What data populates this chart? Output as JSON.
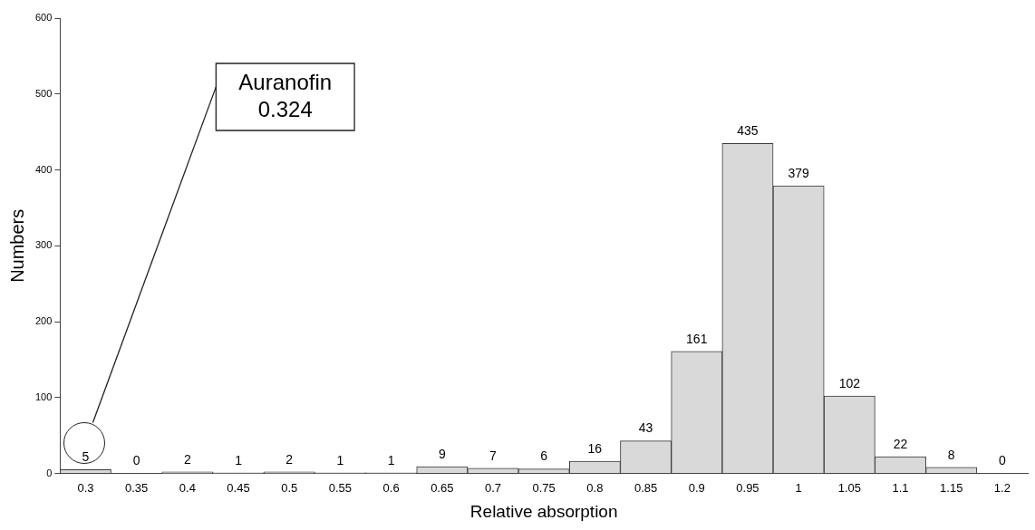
{
  "chart_data": {
    "type": "bar",
    "xlabel": "Relative absorption",
    "ylabel": "Numbers",
    "categories": [
      "0.3",
      "0.35",
      "0.4",
      "0.45",
      "0.5",
      "0.55",
      "0.6",
      "0.65",
      "0.7",
      "0.75",
      "0.8",
      "0.85",
      "0.9",
      "0.95",
      "1",
      "1.05",
      "1.1",
      "1.15",
      "1.2"
    ],
    "values": [
      5,
      0,
      2,
      1,
      2,
      1,
      1,
      9,
      7,
      6,
      16,
      43,
      161,
      435,
      379,
      102,
      22,
      8,
      0
    ],
    "color": "#d9d9d9",
    "ylim": [
      0,
      600
    ],
    "yticks": [
      0,
      100,
      200,
      300,
      400,
      500,
      600
    ],
    "grid": false,
    "legend": false,
    "data_labels": true,
    "annotations": [
      "Auranofin\n0.324"
    ]
  }
}
